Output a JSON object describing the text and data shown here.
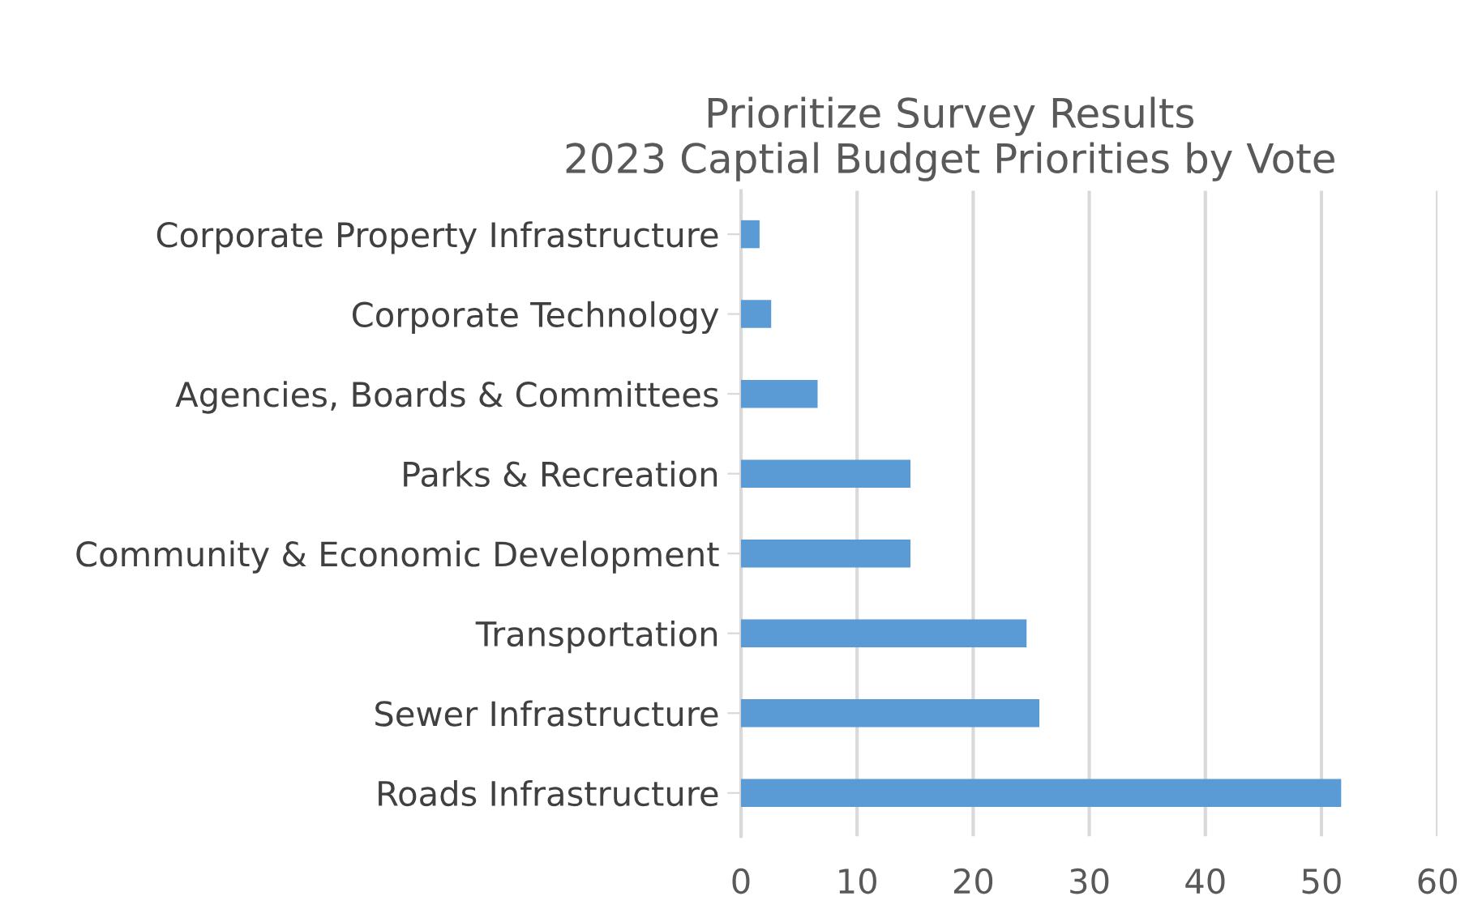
{
  "chart_data": {
    "type": "bar",
    "orientation": "horizontal",
    "title": "Prioritize Survey Results\n2023 Captial Budget Priorities by Vote",
    "categories": [
      "Corporate Property Infrastructure",
      "Corporate Technology",
      "Agencies, Boards & Committees",
      "Parks & Recreation",
      "Community & Economic Development",
      "Transportation",
      "Sewer Infrastructure",
      "Roads Infrastructure"
    ],
    "values": [
      1.6,
      2.6,
      6.6,
      14.6,
      14.6,
      24.6,
      25.7,
      51.7
    ],
    "color": "#5b9bd5",
    "xlim": [
      0,
      60
    ],
    "xticks": [
      0,
      10,
      20,
      30,
      40,
      50,
      60
    ],
    "grid": "x"
  }
}
